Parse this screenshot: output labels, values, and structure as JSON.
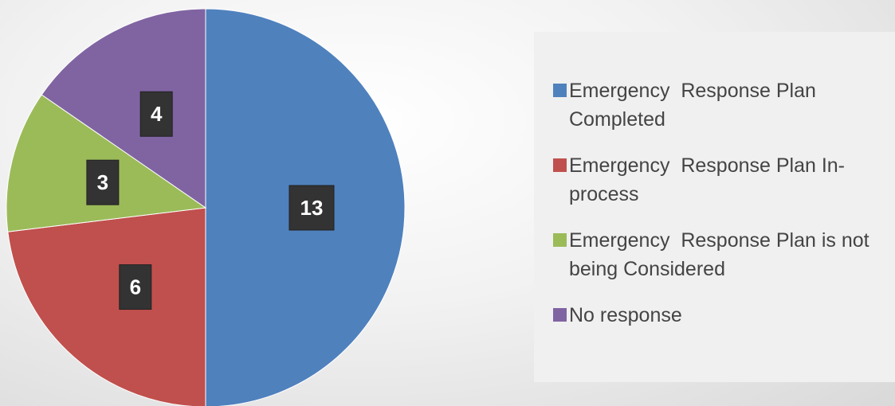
{
  "chart_data": {
    "type": "pie",
    "categories": [
      "Emergency  Response Plan Completed",
      "Emergency  Response Plan In-process",
      "Emergency  Response Plan is not being Considered",
      "No response"
    ],
    "values": [
      13,
      6,
      3,
      4
    ],
    "colors": [
      "#4f81bd",
      "#c0504d",
      "#9bbb59",
      "#8064a2"
    ],
    "legend": "right"
  }
}
